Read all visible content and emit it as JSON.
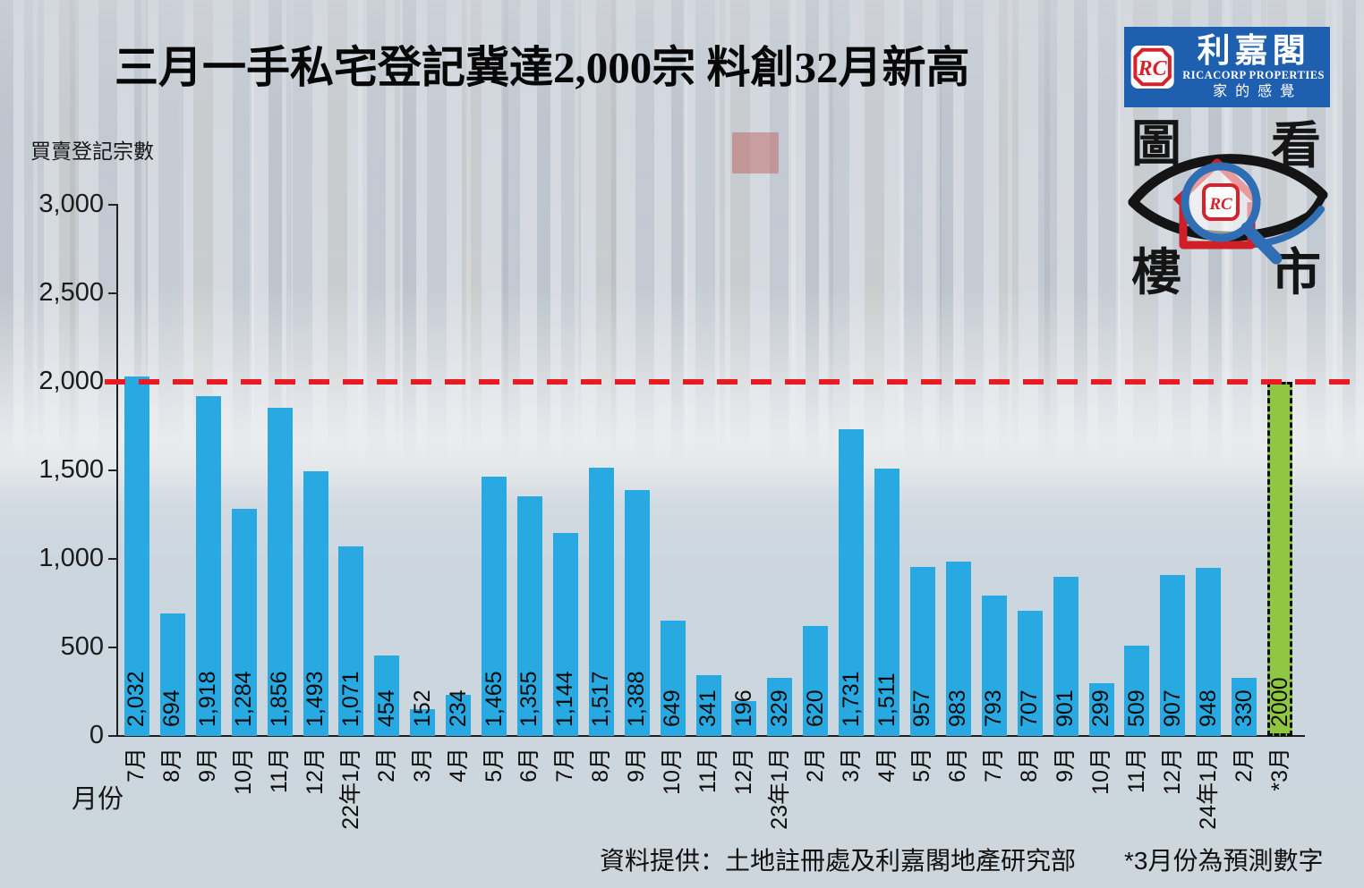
{
  "title": "三月一手私宅登記冀達2,000宗 料創32月新高",
  "logo": {
    "banner_color": "#1e5fb0",
    "emblem_text": "RC",
    "brand_cjk": "利嘉閣",
    "brand_en": "RICACORP PROPERTIES",
    "slogan": "家的感覺",
    "stamp": {
      "top_left": "圖",
      "top_right": "看",
      "bottom_left": "樓",
      "bottom_right": "市",
      "emblem_text": "RC"
    }
  },
  "chart_data": {
    "type": "bar",
    "ylabel": "買賣登記宗數",
    "xlabel": "月份",
    "ylim": [
      0,
      3000
    ],
    "ytick_values": [
      0,
      500,
      1000,
      1500,
      2000,
      2500,
      3000
    ],
    "ytick_labels": [
      "0",
      "500",
      "1,000",
      "1,500",
      "2,000",
      "2,500",
      "3,000"
    ],
    "categories": [
      "7月",
      "8月",
      "9月",
      "10月",
      "11月",
      "12月",
      "22年1月",
      "2月",
      "3月",
      "4月",
      "5月",
      "6月",
      "7月",
      "8月",
      "9月",
      "10月",
      "11月",
      "12月",
      "23年1月",
      "2月",
      "3月",
      "4月",
      "5月",
      "6月",
      "7月",
      "8月",
      "9月",
      "10月",
      "11月",
      "12月",
      "24年1月",
      "2月",
      "*3月"
    ],
    "values": [
      2032,
      694,
      1918,
      1284,
      1856,
      1493,
      1071,
      454,
      152,
      234,
      1465,
      1355,
      1144,
      1517,
      1388,
      649,
      341,
      196,
      329,
      620,
      1731,
      1511,
      957,
      983,
      793,
      707,
      901,
      299,
      509,
      907,
      948,
      330,
      2000
    ],
    "bar_labels": [
      "2,032",
      "694",
      "1,918",
      "1,284",
      "1,856",
      "1,493",
      "1,071",
      "454",
      "152",
      "234",
      "1,465",
      "1,355",
      "1,144",
      "1,517",
      "1,388",
      "649",
      "341",
      "196",
      "329",
      "620",
      "1,731",
      "1,511",
      "957",
      "983",
      "793",
      "707",
      "901",
      "299",
      "509",
      "907",
      "948",
      "330",
      "2000"
    ],
    "bar_color": "#29a9e1",
    "highlight": {
      "index": 32,
      "color": "#8fc742",
      "border_style": "dashed"
    },
    "target_line": {
      "value": 2000,
      "color": "#e81b22",
      "style": "dashed"
    },
    "grid": false,
    "legend": false
  },
  "footer": {
    "source": "資料提供：土地註冊處及利嘉閣地產研究部",
    "footnote": "*3月份為預測數字"
  }
}
